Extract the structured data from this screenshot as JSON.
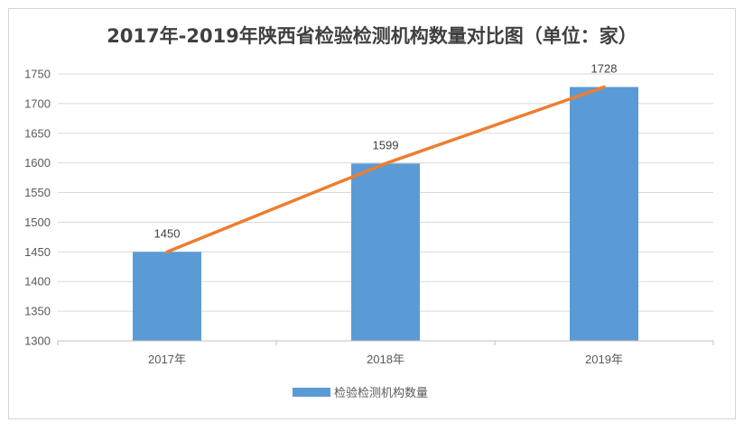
{
  "chart_data": {
    "type": "bar",
    "title": "2017年-2019年陕西省检验检测机构数量对比图（单位：家）",
    "categories": [
      "2017年",
      "2018年",
      "2019年"
    ],
    "series": [
      {
        "name": "检验检测机构数量",
        "type": "bar",
        "values": [
          1450,
          1599,
          1728
        ],
        "color": "#5b9bd5"
      }
    ],
    "overlay_line": {
      "values": [
        1450,
        1599,
        1728
      ],
      "color": "#ed7d31"
    },
    "data_labels": [
      "1450",
      "1599",
      "1728"
    ],
    "y_ticks": [
      "1750",
      "1700",
      "1650",
      "1600",
      "1550",
      "1500",
      "1450",
      "1400",
      "1350",
      "1300"
    ],
    "ylim": [
      1300,
      1750
    ],
    "grid": true,
    "legend_position": "bottom"
  }
}
